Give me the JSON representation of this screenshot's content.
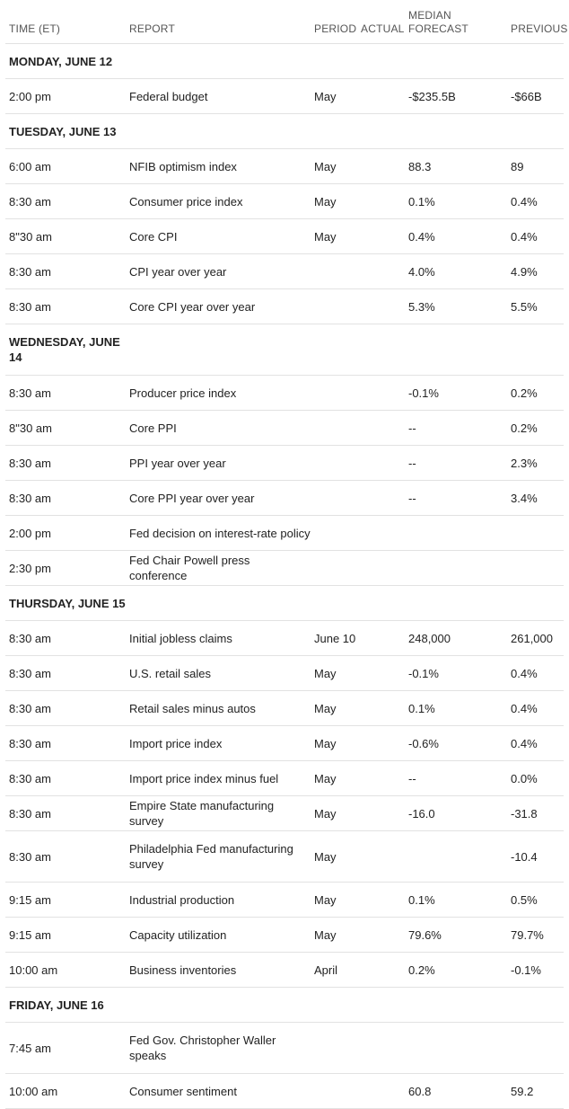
{
  "headers": {
    "time": "TIME (ET)",
    "report": "REPORT",
    "period": "PERIOD",
    "actual": "ACTUAL",
    "forecast": "MEDIAN FORECAST",
    "previous": "PREVIOUS"
  },
  "days": [
    {
      "label": "MONDAY, JUNE 12",
      "rows": [
        {
          "time": "2:00 pm",
          "report": "Federal budget",
          "period": "May",
          "actual": "",
          "forecast": "-$235.5B",
          "previous": "-$66B"
        }
      ]
    },
    {
      "label": "TUESDAY, JUNE 13",
      "rows": [
        {
          "time": "6:00 am",
          "report": "NFIB optimism index",
          "period": "May",
          "actual": "",
          "forecast": "88.3",
          "previous": "89"
        },
        {
          "time": "8:30 am",
          "report": "Consumer price index",
          "period": "May",
          "actual": "",
          "forecast": "0.1%",
          "previous": "0.4%"
        },
        {
          "time": "8\"30 am",
          "report": "Core CPI",
          "period": "May",
          "actual": "",
          "forecast": "0.4%",
          "previous": "0.4%"
        },
        {
          "time": "8:30 am",
          "report": "CPI year over year",
          "period": "",
          "actual": "",
          "forecast": "4.0%",
          "previous": "4.9%"
        },
        {
          "time": "8:30 am",
          "report": "Core CPI year over year",
          "period": "",
          "actual": "",
          "forecast": "5.3%",
          "previous": "5.5%"
        }
      ]
    },
    {
      "label": "WEDNESDAY, JUNE 14",
      "rows": [
        {
          "time": "8:30 am",
          "report": "Producer price index",
          "period": "",
          "actual": "",
          "forecast": "-0.1%",
          "previous": "0.2%"
        },
        {
          "time": "8\"30 am",
          "report": "Core PPI",
          "period": "",
          "actual": "",
          "forecast": "--",
          "previous": "0.2%"
        },
        {
          "time": "8:30 am",
          "report": "PPI year over year",
          "period": "",
          "actual": "",
          "forecast": "--",
          "previous": "2.3%"
        },
        {
          "time": "8:30 am",
          "report": "Core PPI year over year",
          "period": "",
          "actual": "",
          "forecast": "--",
          "previous": "3.4%"
        },
        {
          "time": "2:00 pm",
          "report": "Fed decision on interest-rate policy",
          "period": "",
          "actual": "",
          "forecast": "",
          "previous": ""
        },
        {
          "time": "2:30 pm",
          "report": "Fed Chair Powell press conference",
          "period": "",
          "actual": "",
          "forecast": "",
          "previous": ""
        }
      ]
    },
    {
      "label": "THURSDAY, JUNE 15",
      "rows": [
        {
          "time": "8:30 am",
          "report": "Initial jobless claims",
          "period": "June 10",
          "actual": "",
          "forecast": "248,000",
          "previous": "261,000"
        },
        {
          "time": "8:30 am",
          "report": "U.S. retail sales",
          "period": "May",
          "actual": "",
          "forecast": "-0.1%",
          "previous": "0.4%"
        },
        {
          "time": "8:30 am",
          "report": "Retail sales minus autos",
          "period": "May",
          "actual": "",
          "forecast": "0.1%",
          "previous": "0.4%"
        },
        {
          "time": "8:30 am",
          "report": "Import price index",
          "period": "May",
          "actual": "",
          "forecast": "-0.6%",
          "previous": "0.4%"
        },
        {
          "time": "8:30 am",
          "report": "Import price index minus fuel",
          "period": "May",
          "actual": "",
          "forecast": "--",
          "previous": "0.0%"
        },
        {
          "time": "8:30 am",
          "report": "Empire State manufacturing survey",
          "period": "May",
          "actual": "",
          "forecast": "-16.0",
          "previous": "-31.8"
        },
        {
          "time": "8:30 am",
          "report": "Philadelphia Fed manufacturing survey",
          "period": "May",
          "actual": "",
          "forecast": "",
          "previous": "-10.4"
        },
        {
          "time": "9:15 am",
          "report": "Industrial production",
          "period": "May",
          "actual": "",
          "forecast": "0.1%",
          "previous": "0.5%"
        },
        {
          "time": "9:15 am",
          "report": "Capacity utilization",
          "period": "May",
          "actual": "",
          "forecast": "79.6%",
          "previous": "79.7%"
        },
        {
          "time": "10:00 am",
          "report": "Business inventories",
          "period": "April",
          "actual": "",
          "forecast": "0.2%",
          "previous": "-0.1%"
        }
      ]
    },
    {
      "label": "FRIDAY, JUNE 16",
      "rows": [
        {
          "time": "7:45 am",
          "report": "Fed Gov. Christopher Waller speaks",
          "period": "",
          "actual": "",
          "forecast": "",
          "previous": ""
        },
        {
          "time": "10:00 am",
          "report": "Consumer sentiment",
          "period": "",
          "actual": "",
          "forecast": "60.8",
          "previous": "59.2"
        }
      ]
    }
  ]
}
